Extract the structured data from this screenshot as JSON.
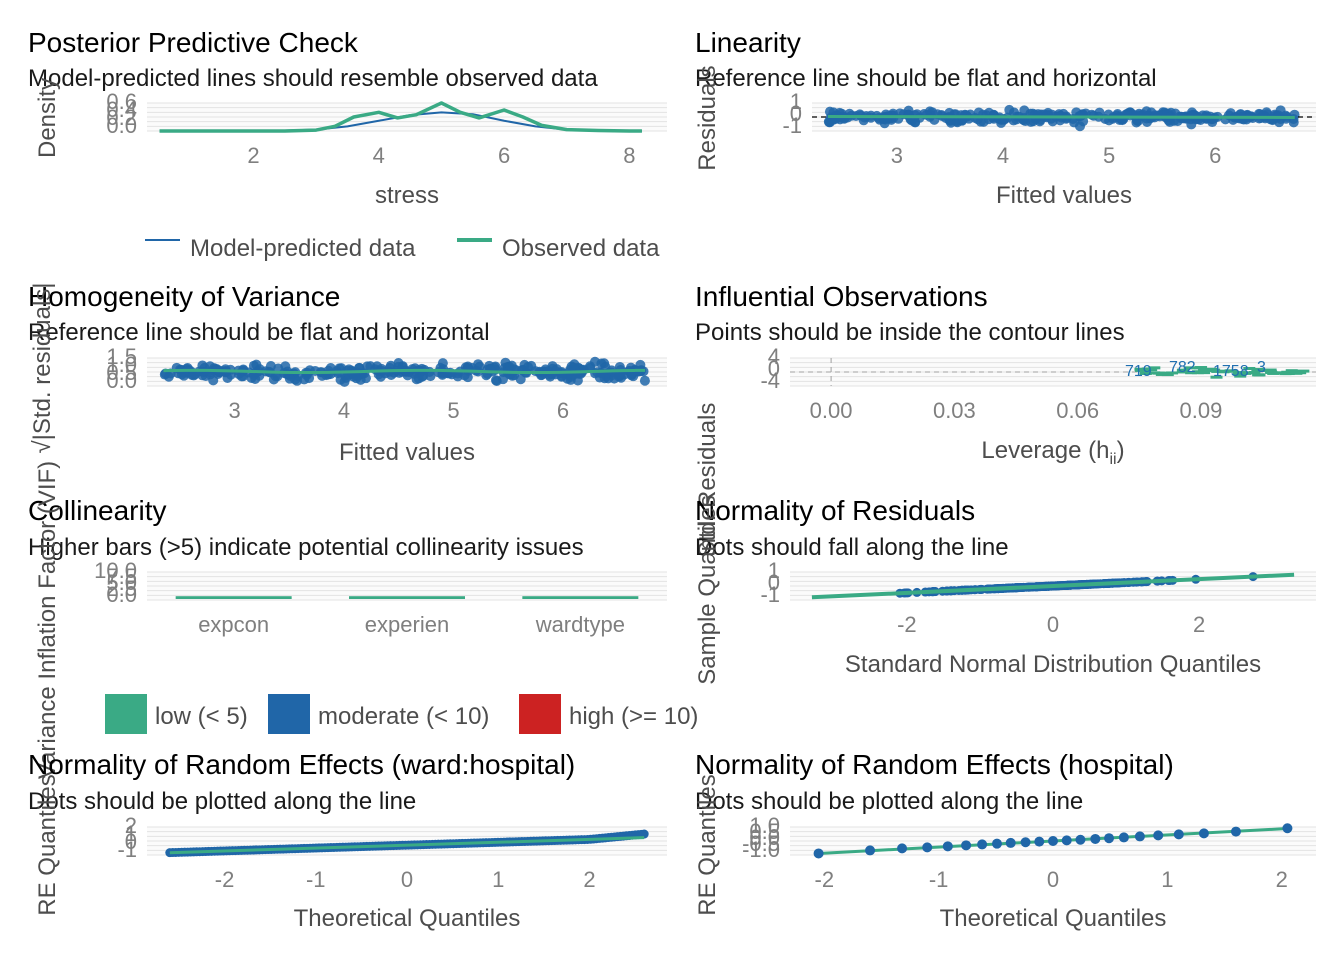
{
  "colors": {
    "blue": "#2066a8",
    "green": "#3aaa85",
    "red": "#cc2222",
    "grid": "#e3e3e3",
    "ref": "#000000"
  },
  "chart_data": [
    {
      "id": "ppc",
      "type": "line",
      "title": "Posterior Predictive Check",
      "subtitle": "Model-predicted lines should resemble observed data",
      "xlabel": "stress",
      "ylabel": "Density",
      "xlim": [
        0.3,
        8.6
      ],
      "ylim": [
        0,
        0.6
      ],
      "xticks": [
        2,
        4,
        6,
        8
      ],
      "yticks": [
        "0.0",
        "0.2",
        "0.4",
        "0.6"
      ],
      "legend": "bottom",
      "legend_entries": [
        "Model-predicted data",
        "Observed data"
      ],
      "series": [
        {
          "name": "Model-predicted data",
          "color": "blue",
          "x": [
            0.5,
            1,
            1.5,
            2,
            2.5,
            3,
            3.5,
            4,
            4.5,
            5,
            5.5,
            6,
            6.5,
            7,
            7.5,
            8,
            8.2
          ],
          "y": [
            0.0,
            0.0,
            0.0,
            0.0,
            0.01,
            0.03,
            0.1,
            0.22,
            0.34,
            0.4,
            0.36,
            0.22,
            0.1,
            0.03,
            0.01,
            0.0,
            0.0
          ]
        },
        {
          "name": "Observed data",
          "color": "green",
          "x": [
            0.5,
            1,
            1.5,
            2,
            2.5,
            3,
            3.3,
            3.6,
            4,
            4.3,
            4.6,
            5,
            5.3,
            5.6,
            6,
            6.3,
            6.6,
            7,
            7.5,
            8,
            8.2
          ],
          "y": [
            0.0,
            0.0,
            0.0,
            0.0,
            0.0,
            0.02,
            0.1,
            0.3,
            0.4,
            0.28,
            0.35,
            0.6,
            0.4,
            0.28,
            0.45,
            0.3,
            0.12,
            0.03,
            0.01,
            0.0,
            0.0
          ]
        }
      ]
    },
    {
      "id": "lin",
      "type": "scatter",
      "title": "Linearity",
      "subtitle": "Reference line should be flat and horizontal",
      "xlabel": "Fitted values",
      "ylabel": "Residuals",
      "xlim": [
        2.2,
        6.95
      ],
      "ylim": [
        -1.5,
        1.5
      ],
      "xticks": [
        3,
        4,
        5,
        6
      ],
      "yticks": [
        "-1",
        "0",
        "1"
      ],
      "reference_line": 0
    },
    {
      "id": "hov",
      "type": "scatter",
      "title": "Homogeneity of Variance",
      "subtitle": "Reference line should be flat and horizontal",
      "xlabel": "Fitted values",
      "ylabel": "√|Std. residuals|",
      "xlim": [
        2.2,
        6.95
      ],
      "ylim": [
        0,
        1.5
      ],
      "xticks": [
        3,
        4,
        5,
        6
      ],
      "yticks": [
        "0.0",
        "0.5",
        "1.0",
        "1.5"
      ]
    },
    {
      "id": "infl",
      "type": "scatter",
      "title": "Influential Observations",
      "subtitle": "Points should be inside the contour lines",
      "xlabel": "Leverage (h",
      "xlabel_sub": "ii",
      "xlabel_end": ")",
      "ylabel": "Std. Residuals",
      "xlim": [
        -0.01,
        0.118
      ],
      "ylim": [
        -4.5,
        4.5
      ],
      "xticks": [
        "0.00",
        "0.03",
        "0.06",
        "0.09"
      ],
      "xtick_values": [
        0,
        0.03,
        0.06,
        0.09
      ],
      "yticks": [
        "-4",
        "0",
        "4"
      ],
      "point_labels": [
        "719",
        "782",
        "1758",
        "3"
      ]
    },
    {
      "id": "col",
      "type": "bar",
      "title": "Collinearity",
      "subtitle": "Higher bars (>5) indicate potential collinearity issues",
      "xlabel": "",
      "ylabel": "Variance Inflation Factor (VIF)",
      "categories": [
        "expcon",
        "experien",
        "wardtype"
      ],
      "values": [
        1.0,
        1.0,
        1.0
      ],
      "ylim": [
        0,
        10
      ],
      "yticks": [
        "0.0",
        "2.5",
        "5.0",
        "7.5",
        "10.0"
      ],
      "legend": "bottom",
      "legend_entries": [
        "low (< 5)",
        "moderate (< 10)",
        "high (>= 10)"
      ]
    },
    {
      "id": "nor",
      "type": "scatter",
      "title": "Normality of Residuals",
      "subtitle": "Dots should fall along the line",
      "xlabel": "Standard Normal Distribution Quantiles",
      "ylabel": "Sample Quantiles",
      "xlim": [
        -3.6,
        3.6
      ],
      "ylim": [
        -1.3,
        1.3
      ],
      "xticks": [
        -2,
        0,
        2
      ],
      "yticks": [
        "-1",
        "0",
        "1"
      ]
    },
    {
      "id": "re1",
      "type": "scatter",
      "title": "Normality of Random Effects (ward:hospital)",
      "subtitle": "Dots should be plotted along the line",
      "xlabel": "Theoretical Quantiles",
      "ylabel": "RE Quantiles",
      "xlim": [
        -2.85,
        2.85
      ],
      "ylim": [
        -1.3,
        2.4
      ],
      "xticks": [
        -2,
        -1,
        0,
        1,
        2
      ],
      "yticks": [
        "-1",
        "0",
        "1",
        "2"
      ]
    },
    {
      "id": "re2",
      "type": "scatter",
      "title": "Normality of Random Effects (hospital)",
      "subtitle": "Dots should be plotted along the line",
      "xlabel": "Theoretical Quantiles",
      "ylabel": "RE Quantiles",
      "xlim": [
        -2.3,
        2.3
      ],
      "ylim": [
        -1.1,
        1.1
      ],
      "xticks": [
        -2,
        -1,
        0,
        1,
        2
      ],
      "yticks": [
        "-1.0",
        "-0.5",
        "0.0",
        "0.5",
        "1.0"
      ],
      "points": {
        "x": [
          -2.05,
          -1.6,
          -1.32,
          -1.1,
          -0.92,
          -0.76,
          -0.62,
          -0.49,
          -0.37,
          -0.24,
          -0.12,
          0.0,
          0.12,
          0.24,
          0.37,
          0.49,
          0.62,
          0.76,
          0.92,
          1.1,
          1.32,
          1.6,
          2.05
        ],
        "y": [
          -0.98,
          -0.74,
          -0.58,
          -0.5,
          -0.42,
          -0.34,
          -0.27,
          -0.21,
          -0.15,
          -0.1,
          -0.05,
          0.0,
          0.05,
          0.1,
          0.16,
          0.22,
          0.28,
          0.36,
          0.44,
          0.52,
          0.6,
          0.74,
          1.0
        ]
      }
    }
  ]
}
